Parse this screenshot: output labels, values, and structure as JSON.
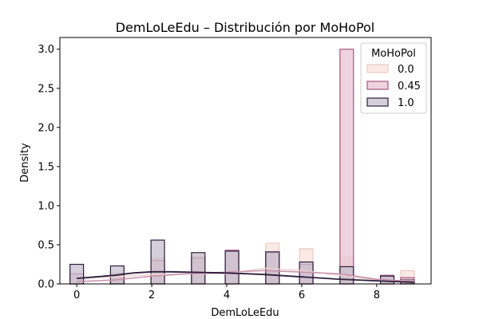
{
  "chart_data": {
    "type": "histogram",
    "title": "DemLoLeEdu – Distribución por MoHoPol",
    "xlabel": "DemLoLeEdu",
    "ylabel": "Density",
    "xlim": [
      -0.45,
      9.45
    ],
    "ylim": [
      0,
      3.15
    ],
    "x_ticks": [
      0,
      2,
      4,
      6,
      8
    ],
    "y_ticks": [
      0.0,
      0.5,
      1.0,
      1.5,
      2.0,
      2.5,
      3.0
    ],
    "x_tick_labels": [
      "0",
      "2",
      "4",
      "6",
      "8"
    ],
    "y_tick_labels": [
      "0.0",
      "0.5",
      "1.0",
      "1.5",
      "2.0",
      "2.5",
      "3.0"
    ],
    "bin_width": 0.36,
    "legend": {
      "title": "MoHoPol",
      "position": "upper right",
      "entries": [
        "0.0",
        "0.45",
        "1.0"
      ]
    },
    "series": [
      {
        "name": "0.0",
        "fill": "#fbe9e6",
        "edge": "#ecc9c4",
        "kde_color": "#eed0cc",
        "bins": [
          {
            "x": 0.0,
            "density": 0.08
          },
          {
            "x": 1.08,
            "density": 0.14
          },
          {
            "x": 2.16,
            "density": 0.33
          },
          {
            "x": 3.24,
            "density": 0.35
          },
          {
            "x": 4.14,
            "density": 0.41
          },
          {
            "x": 5.22,
            "density": 0.52
          },
          {
            "x": 6.12,
            "density": 0.45
          },
          {
            "x": 7.2,
            "density": 0.34
          },
          {
            "x": 8.28,
            "density": 0.07
          },
          {
            "x": 8.82,
            "density": 0.17
          }
        ],
        "kde": [
          [
            0,
            0.07
          ],
          [
            1,
            0.09
          ],
          [
            2,
            0.12
          ],
          [
            3,
            0.13
          ],
          [
            4,
            0.13
          ],
          [
            5,
            0.2
          ],
          [
            6,
            0.17
          ],
          [
            7,
            0.11
          ],
          [
            8,
            0.05
          ],
          [
            9,
            0.04
          ]
        ]
      },
      {
        "name": "0.45",
        "fill": "#e8c4d3",
        "edge": "#a8557e",
        "kde_color": "#c790ab",
        "bins": [
          {
            "x": 0.0,
            "density": 0.13
          },
          {
            "x": 1.08,
            "density": 0.1
          },
          {
            "x": 2.16,
            "density": 0.3
          },
          {
            "x": 3.24,
            "density": 0.33
          },
          {
            "x": 4.14,
            "density": 0.43
          },
          {
            "x": 5.22,
            "density": 0.4
          },
          {
            "x": 6.12,
            "density": 0.25
          },
          {
            "x": 7.2,
            "density": 3.0
          },
          {
            "x": 8.28,
            "density": 0.11
          },
          {
            "x": 8.82,
            "density": 0.08
          }
        ],
        "kde": [
          [
            0,
            0.03
          ],
          [
            1,
            0.05
          ],
          [
            2,
            0.1
          ],
          [
            3,
            0.13
          ],
          [
            4,
            0.15
          ],
          [
            5,
            0.17
          ],
          [
            6,
            0.15
          ],
          [
            7,
            0.13
          ],
          [
            8,
            0.06
          ],
          [
            9,
            0.03
          ]
        ]
      },
      {
        "name": "1.0",
        "fill": "#c7bfcc",
        "edge": "#2d1e3e",
        "kde_color": "#2d1e3e",
        "bins": [
          {
            "x": 0.0,
            "density": 0.25
          },
          {
            "x": 1.08,
            "density": 0.23
          },
          {
            "x": 2.16,
            "density": 0.56
          },
          {
            "x": 3.24,
            "density": 0.4
          },
          {
            "x": 4.14,
            "density": 0.42
          },
          {
            "x": 5.22,
            "density": 0.41
          },
          {
            "x": 6.12,
            "density": 0.28
          },
          {
            "x": 7.2,
            "density": 0.22
          },
          {
            "x": 8.28,
            "density": 0.1
          },
          {
            "x": 8.82,
            "density": 0.05
          }
        ],
        "kde": [
          [
            0,
            0.07
          ],
          [
            0.5,
            0.09
          ],
          [
            1,
            0.11
          ],
          [
            1.5,
            0.14
          ],
          [
            2,
            0.155
          ],
          [
            2.5,
            0.155
          ],
          [
            3,
            0.15
          ],
          [
            3.5,
            0.145
          ],
          [
            4,
            0.14
          ],
          [
            4.5,
            0.13
          ],
          [
            5,
            0.12
          ],
          [
            5.5,
            0.105
          ],
          [
            6,
            0.09
          ],
          [
            6.5,
            0.075
          ],
          [
            7,
            0.06
          ],
          [
            7.5,
            0.05
          ],
          [
            8,
            0.04
          ],
          [
            8.5,
            0.03
          ],
          [
            9,
            0.02
          ]
        ]
      }
    ]
  }
}
